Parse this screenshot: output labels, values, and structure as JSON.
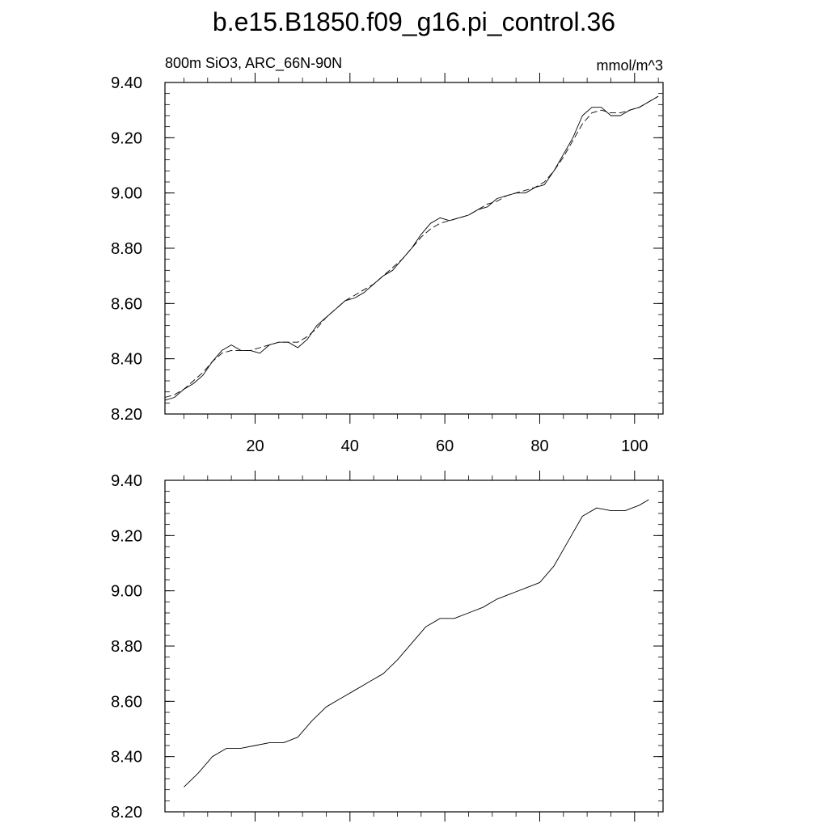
{
  "title": "b.e15.B1850.f09_g16.pi_control.36",
  "subtitle_left": "800m SiO3, ARC_66N-90N",
  "units": "mmol/m^3",
  "chart_data": [
    {
      "type": "line",
      "panel": "top",
      "xlim": [
        1,
        106
      ],
      "ylim": [
        8.2,
        9.4
      ],
      "y_ticks": [
        "8.20",
        "8.40",
        "8.60",
        "8.80",
        "9.00",
        "9.20",
        "9.40"
      ],
      "x_ticks": [
        "20",
        "40",
        "60",
        "80",
        "100"
      ],
      "grid": false,
      "series": [
        {
          "style": "solid",
          "x": [
            1,
            3,
            5,
            7,
            9,
            11,
            13,
            15,
            17,
            19,
            21,
            23,
            25,
            27,
            29,
            31,
            33,
            35,
            37,
            39,
            41,
            43,
            45,
            47,
            49,
            51,
            53,
            55,
            57,
            59,
            61,
            63,
            65,
            67,
            69,
            71,
            73,
            75,
            77,
            79,
            81,
            83,
            85,
            87,
            89,
            91,
            93,
            95,
            97,
            99,
            101,
            103,
            105
          ],
          "y": [
            8.25,
            8.26,
            8.29,
            8.31,
            8.34,
            8.39,
            8.43,
            8.45,
            8.43,
            8.43,
            8.42,
            8.45,
            8.46,
            8.46,
            8.44,
            8.47,
            8.52,
            8.55,
            8.58,
            8.61,
            8.62,
            8.64,
            8.67,
            8.7,
            8.72,
            8.76,
            8.8,
            8.85,
            8.89,
            8.91,
            8.9,
            8.91,
            8.92,
            8.94,
            8.95,
            8.98,
            8.99,
            9.0,
            9.0,
            9.02,
            9.03,
            9.08,
            9.14,
            9.2,
            9.28,
            9.31,
            9.31,
            9.28,
            9.28,
            9.3,
            9.31,
            9.33,
            9.35
          ]
        },
        {
          "style": "dashed",
          "x": [
            1,
            3,
            5,
            7,
            9,
            11,
            13,
            15,
            17,
            19,
            21,
            23,
            25,
            27,
            29,
            31,
            33,
            35,
            37,
            39,
            41,
            43,
            45,
            47,
            49,
            51,
            53,
            55,
            57,
            59,
            61,
            63,
            65,
            67,
            69,
            71,
            73,
            75,
            77,
            79,
            81,
            83,
            85,
            87,
            89,
            91,
            93,
            95,
            97,
            99,
            101,
            103,
            105
          ],
          "y": [
            8.26,
            8.27,
            8.29,
            8.32,
            8.35,
            8.39,
            8.42,
            8.43,
            8.43,
            8.43,
            8.44,
            8.45,
            8.46,
            8.46,
            8.46,
            8.48,
            8.51,
            8.55,
            8.58,
            8.61,
            8.63,
            8.65,
            8.67,
            8.7,
            8.73,
            8.76,
            8.8,
            8.84,
            8.87,
            8.89,
            8.9,
            8.91,
            8.92,
            8.94,
            8.96,
            8.97,
            8.99,
            9.0,
            9.01,
            9.02,
            9.04,
            9.08,
            9.13,
            9.19,
            9.25,
            9.29,
            9.3,
            9.29,
            9.29,
            9.3,
            9.31,
            9.33,
            9.35
          ]
        }
      ]
    },
    {
      "type": "line",
      "panel": "bottom",
      "xlim": [
        1,
        106
      ],
      "ylim": [
        8.2,
        9.4
      ],
      "y_ticks": [
        "8.20",
        "8.40",
        "8.60",
        "8.80",
        "9.00",
        "9.20",
        "9.40"
      ],
      "grid": false,
      "series": [
        {
          "style": "solid",
          "x": [
            5,
            8,
            11,
            14,
            17,
            20,
            23,
            26,
            29,
            32,
            35,
            38,
            41,
            44,
            47,
            50,
            53,
            56,
            59,
            62,
            65,
            68,
            71,
            74,
            77,
            80,
            83,
            86,
            89,
            92,
            95,
            98,
            101,
            103
          ],
          "y": [
            8.29,
            8.34,
            8.4,
            8.43,
            8.43,
            8.44,
            8.45,
            8.45,
            8.47,
            8.53,
            8.58,
            8.61,
            8.64,
            8.67,
            8.7,
            8.75,
            8.81,
            8.87,
            8.9,
            8.9,
            8.92,
            8.94,
            8.97,
            8.99,
            9.01,
            9.03,
            9.09,
            9.18,
            9.27,
            9.3,
            9.29,
            9.29,
            9.31,
            9.33
          ]
        }
      ]
    }
  ]
}
